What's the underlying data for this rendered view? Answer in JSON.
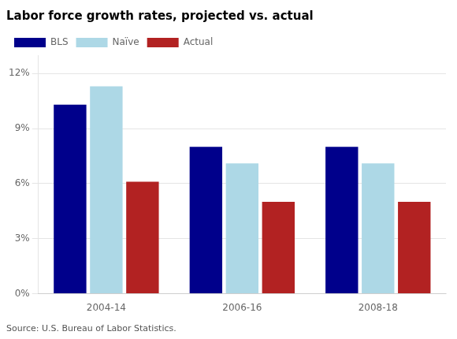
{
  "chart_data": {
    "type": "bar",
    "title": "Labor force growth rates, projected vs. actual",
    "categories": [
      "2004-14",
      "2006-16",
      "2008-18"
    ],
    "series": [
      {
        "name": "BLS",
        "color": "#00008B",
        "values": [
          10.3,
          8.0,
          8.0
        ]
      },
      {
        "name": "Naïve",
        "color": "#ADD8E6",
        "values": [
          11.3,
          7.1,
          7.1
        ]
      },
      {
        "name": "Actual",
        "color": "#B22222",
        "values": [
          6.1,
          5.0,
          5.0
        ]
      }
    ],
    "ylim": [
      0,
      13
    ],
    "yticks": [
      {
        "value": 0,
        "label": "0%"
      },
      {
        "value": 3,
        "label": "3%"
      },
      {
        "value": 6,
        "label": "6%"
      },
      {
        "value": 9,
        "label": "9%"
      },
      {
        "value": 12,
        "label": "12%"
      }
    ],
    "grid": true,
    "legend": "upper left",
    "annotations": [
      "Source: U.S. Bureau of Labor Statistics."
    ]
  }
}
